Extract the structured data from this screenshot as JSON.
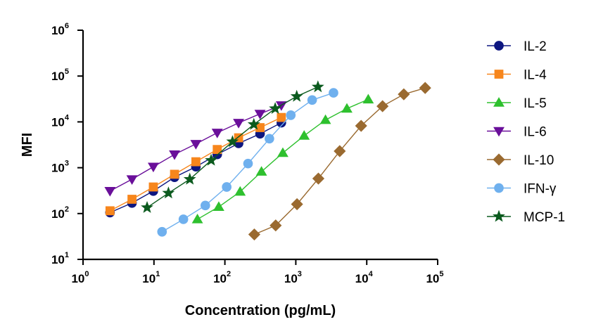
{
  "chart_data": {
    "type": "line",
    "xscale": "log",
    "yscale": "log",
    "xlabel": "Concentration (pg/mL)",
    "ylabel": "MFI",
    "xlim": [
      1,
      100000
    ],
    "ylim": [
      10,
      1000000
    ],
    "x_ticks": [
      {
        "value": 1,
        "base": "10",
        "exp": "0"
      },
      {
        "value": 10,
        "base": "10",
        "exp": "1"
      },
      {
        "value": 100,
        "base": "10",
        "exp": "2"
      },
      {
        "value": 1000,
        "base": "10",
        "exp": "3"
      },
      {
        "value": 10000,
        "base": "10",
        "exp": "4"
      },
      {
        "value": 100000,
        "base": "10",
        "exp": "5"
      }
    ],
    "y_ticks": [
      {
        "value": 10,
        "base": "10",
        "exp": "1"
      },
      {
        "value": 100,
        "base": "10",
        "exp": "2"
      },
      {
        "value": 1000,
        "base": "10",
        "exp": "3"
      },
      {
        "value": 10000,
        "base": "10",
        "exp": "4"
      },
      {
        "value": 100000,
        "base": "10",
        "exp": "5"
      },
      {
        "value": 1000000,
        "base": "10",
        "exp": "6"
      }
    ],
    "legend_position": "right",
    "grid": false,
    "series": [
      {
        "name": "IL-2",
        "color": "#0d1680",
        "marker": "circle",
        "x": [
          2.4,
          4.9,
          9.8,
          19.5,
          39,
          78,
          156,
          313,
          625
        ],
        "y": [
          105,
          170,
          310,
          620,
          1050,
          1950,
          3400,
          5500,
          9600
        ]
      },
      {
        "name": "IL-4",
        "color": "#f7861c",
        "marker": "square",
        "x": [
          2.4,
          4.9,
          9.8,
          19.5,
          39,
          78,
          156,
          313,
          625
        ],
        "y": [
          115,
          205,
          380,
          720,
          1350,
          2500,
          4500,
          7500,
          12500
        ]
      },
      {
        "name": "IL-5",
        "color": "#2ec02e",
        "marker": "triangle-up",
        "x": [
          41,
          82,
          164,
          328,
          656,
          1310,
          2620,
          5250,
          10500
        ],
        "y": [
          75,
          140,
          300,
          820,
          2100,
          5000,
          11000,
          19500,
          31000
        ]
      },
      {
        "name": "IL-6",
        "color": "#6a0f9a",
        "marker": "triangle-down",
        "x": [
          2.4,
          4.9,
          9.8,
          19.5,
          39,
          78,
          156,
          313,
          625
        ],
        "y": [
          310,
          560,
          1050,
          1950,
          3300,
          5800,
          9500,
          15000,
          23000
        ]
      },
      {
        "name": "IL-10",
        "color": "#9a6a30",
        "marker": "diamond",
        "x": [
          260,
          520,
          1040,
          2080,
          4160,
          8330,
          16700,
          33300,
          66600
        ],
        "y": [
          35,
          55,
          160,
          580,
          2300,
          8200,
          22000,
          40000,
          55000
        ]
      },
      {
        "name": "IFN-γ",
        "color": "#6fb0ee",
        "marker": "circle",
        "x": [
          13,
          26,
          53,
          106,
          212,
          424,
          850,
          1700,
          3400
        ],
        "y": [
          40,
          75,
          150,
          380,
          1230,
          4300,
          14000,
          30000,
          43000
        ]
      },
      {
        "name": "MCP-1",
        "color": "#0b5a1e",
        "marker": "star",
        "x": [
          8,
          16,
          32,
          64,
          128,
          256,
          512,
          1030,
          2050
        ],
        "y": [
          135,
          280,
          560,
          1450,
          3700,
          8800,
          19500,
          36000,
          58000
        ]
      }
    ]
  }
}
